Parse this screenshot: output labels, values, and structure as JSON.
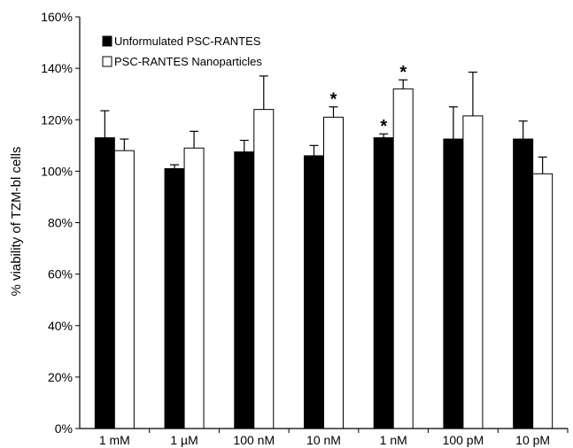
{
  "chart_data": {
    "type": "bar",
    "ylabel": "% viability of TZM-bl cells",
    "xlabel": "",
    "ylim": [
      0,
      160
    ],
    "yticks": [
      0,
      20,
      40,
      60,
      80,
      100,
      120,
      140,
      160
    ],
    "ytick_labels": [
      "0%",
      "20%",
      "40%",
      "60%",
      "80%",
      "100%",
      "120%",
      "140%",
      "160%"
    ],
    "categories": [
      "1 mM",
      "1 µM",
      "100 nM",
      "10 nM",
      "1 nM",
      "100 pM",
      "10 pM"
    ],
    "legend_position": "top-left",
    "series": [
      {
        "name": "Unformulated PSC-RANTES",
        "color": "#000000",
        "values": [
          113,
          101,
          107.5,
          106,
          113,
          112.5,
          112.5
        ],
        "errors": [
          10.5,
          1.5,
          4.5,
          4,
          1.5,
          12.5,
          7
        ],
        "significant": [
          false,
          false,
          false,
          false,
          true,
          false,
          false
        ]
      },
      {
        "name": "PSC-RANTES Nanoparticles",
        "color": "#ffffff",
        "values": [
          108,
          109,
          124,
          121,
          132,
          121.5,
          99
        ],
        "errors": [
          4.5,
          6.5,
          13,
          4,
          3.5,
          17,
          6.5
        ],
        "significant": [
          false,
          false,
          false,
          true,
          true,
          false,
          false
        ]
      }
    ],
    "significance_marker": "*"
  }
}
